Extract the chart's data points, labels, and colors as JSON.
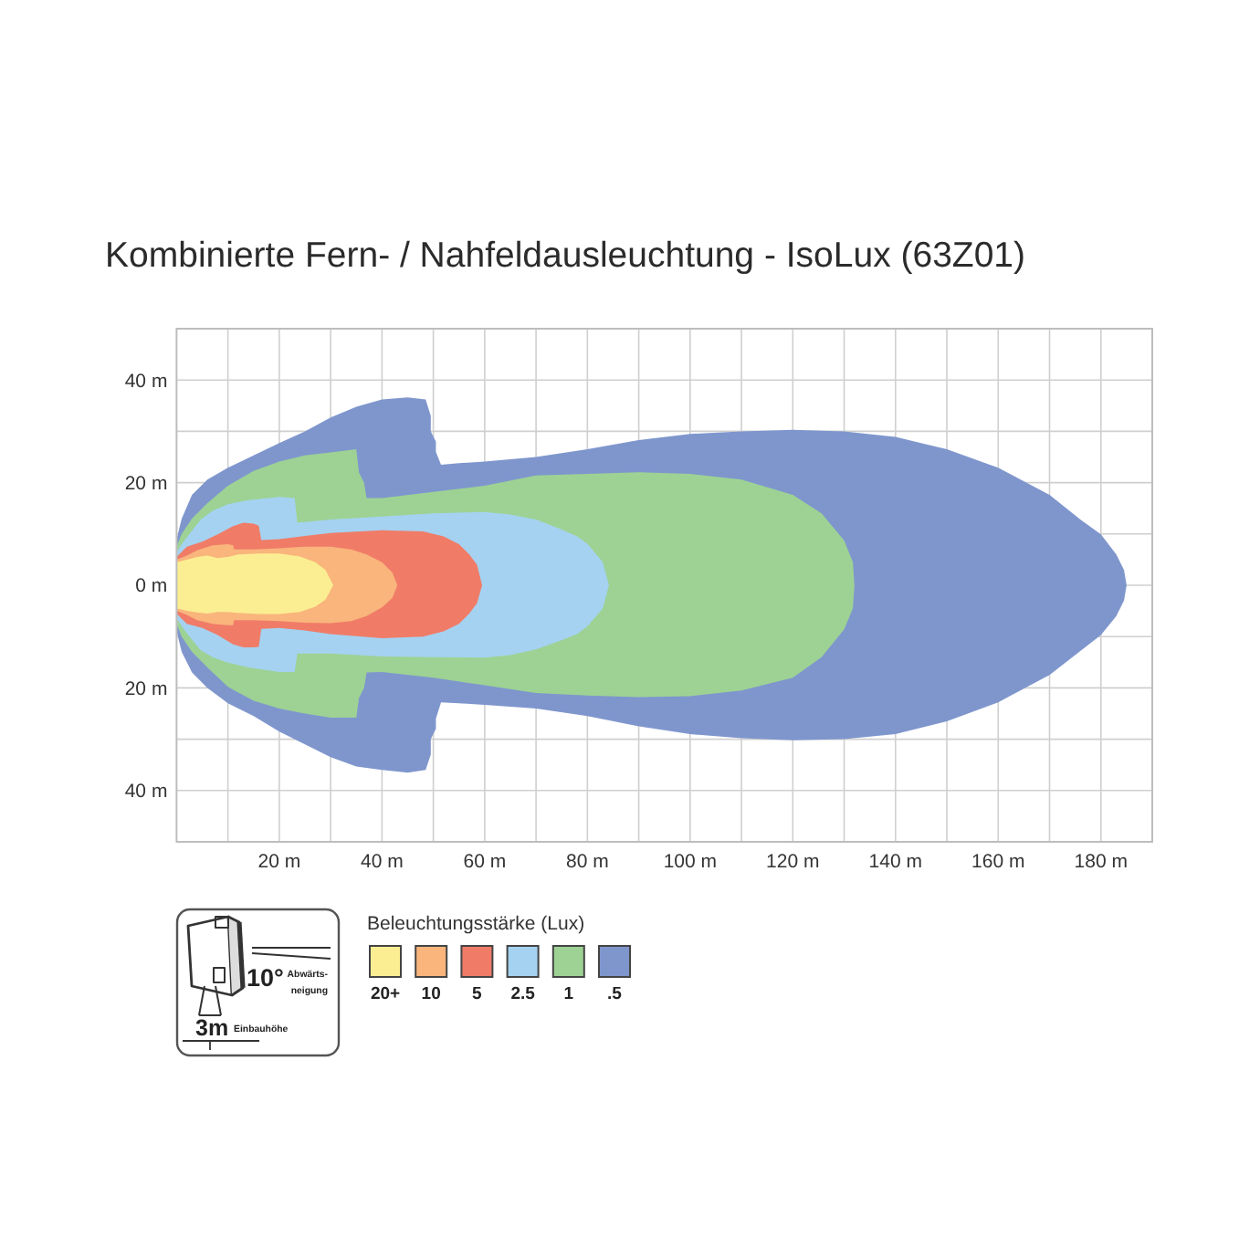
{
  "chart_data": {
    "type": "area",
    "title": "Kombinierte Fern- / Nahfeldausleuchtung - IsoLux (63Z01)",
    "legend_title": "Beleuchtungsstärke (Lux)",
    "annotations": [
      "10°",
      "Abwärts-",
      "neigung",
      "3m",
      "Einbauhöhe"
    ],
    "xlim": [
      0,
      190
    ],
    "ylim": [
      -50,
      50
    ],
    "xticks": [
      {
        "value": 10,
        "label": null
      },
      {
        "value": 20,
        "label": "20 m"
      },
      {
        "value": 30,
        "label": null
      },
      {
        "value": 40,
        "label": "40 m"
      },
      {
        "value": 50,
        "label": null
      },
      {
        "value": 60,
        "label": "60 m"
      },
      {
        "value": 70,
        "label": null
      },
      {
        "value": 80,
        "label": "80 m"
      },
      {
        "value": 90,
        "label": null
      },
      {
        "value": 100,
        "label": "100 m"
      },
      {
        "value": 110,
        "label": null
      },
      {
        "value": 120,
        "label": "120 m"
      },
      {
        "value": 130,
        "label": null
      },
      {
        "value": 140,
        "label": "140 m"
      },
      {
        "value": 150,
        "label": null
      },
      {
        "value": 160,
        "label": "160 m"
      },
      {
        "value": 170,
        "label": null
      },
      {
        "value": 180,
        "label": "180 m"
      }
    ],
    "yticks": [
      {
        "value": -40,
        "label": "40 m"
      },
      {
        "value": -30,
        "label": null
      },
      {
        "value": -20,
        "label": "20 m"
      },
      {
        "value": -10,
        "label": null
      },
      {
        "value": 0,
        "label": "0 m"
      },
      {
        "value": 10,
        "label": null
      },
      {
        "value": 20,
        "label": "20 m"
      },
      {
        "value": 30,
        "label": null
      },
      {
        "value": 40,
        "label": "40 m"
      }
    ],
    "grid": true,
    "legend": "bottom left",
    "series": [
      {
        "name": "20+",
        "color": "#fbee92",
        "x": [
          0,
          2,
          4,
          6,
          8,
          10,
          12,
          16,
          20,
          24,
          27,
          29,
          30.5
        ],
        "values": [
          4.5,
          5,
          5.5,
          5.8,
          5.3,
          5.5,
          6,
          6.2,
          6.2,
          5.6,
          4.5,
          3,
          0
        ]
      },
      {
        "color": "#fbee92",
        "x": [
          0,
          2,
          4,
          6,
          8,
          10,
          12,
          16,
          20,
          24,
          27,
          29,
          30.5
        ],
        "values": [
          -4.5,
          -5,
          -5.3,
          -5.5,
          -5.2,
          -5.2,
          -5.4,
          -5.6,
          -5.6,
          -5.2,
          -4.2,
          -2.8,
          0
        ]
      },
      {
        "name": "10",
        "color": "#f9b57c",
        "x": [
          0,
          2,
          4,
          7,
          10,
          11,
          11.2,
          15,
          20,
          25,
          30,
          34,
          37,
          40,
          42,
          43
        ],
        "values": [
          5,
          5.8,
          6.8,
          7.8,
          8,
          7.8,
          7,
          7,
          7.2,
          7.5,
          7.5,
          7,
          6,
          4.5,
          2.5,
          0
        ]
      },
      {
        "color": "#f9b57c",
        "x": [
          0,
          2,
          4,
          7,
          10,
          11,
          11.2,
          15,
          20,
          25,
          30,
          34,
          37,
          40,
          42,
          43
        ],
        "values": [
          -5,
          -5.8,
          -6.8,
          -7.5,
          -7.8,
          -7.8,
          -6.8,
          -6.8,
          -7,
          -7.3,
          -7.4,
          -7,
          -6,
          -4.3,
          -2.5,
          0
        ]
      },
      {
        "name": "5",
        "color": "#f07c68",
        "x": [
          0,
          2,
          5,
          8,
          11,
          13,
          15,
          16,
          16.5,
          20,
          25,
          30,
          40,
          48,
          52,
          55,
          57,
          58.5,
          59.5
        ],
        "values": [
          5.5,
          7.5,
          8.5,
          9.9,
          11.5,
          12.2,
          12,
          11.6,
          8.8,
          9,
          9.6,
          10.2,
          10.7,
          10.5,
          9.5,
          8,
          6,
          4,
          0
        ]
      },
      {
        "color": "#f07c68",
        "x": [
          0,
          2,
          5,
          8,
          11,
          13,
          15,
          16,
          16.5,
          20,
          25,
          30,
          40,
          48,
          52,
          55,
          57,
          58.5,
          59.5
        ],
        "values": [
          -5.5,
          -7.5,
          -8.3,
          -9.7,
          -11.5,
          -12.1,
          -12.1,
          -12,
          -8.5,
          -8.3,
          -8.8,
          -9.5,
          -10.3,
          -10,
          -9,
          -7.5,
          -5.5,
          -3.5,
          0
        ]
      },
      {
        "name": "2.5",
        "color": "#a5d2f0",
        "x": [
          0,
          1,
          2.5,
          4.7,
          7,
          10,
          14,
          20,
          23,
          23.5,
          30,
          40,
          50,
          60,
          65,
          70,
          74.7,
          78,
          80,
          83,
          84.2
        ],
        "values": [
          6.5,
          8,
          10,
          12.8,
          14.5,
          15.8,
          16.6,
          17.2,
          17,
          12.2,
          12.8,
          13.4,
          14,
          14.3,
          13.8,
          12.8,
          11,
          9.5,
          8.1,
          4.5,
          0
        ]
      },
      {
        "color": "#a5d2f0",
        "x": [
          0,
          1,
          2.5,
          4.7,
          7,
          10,
          14,
          20,
          23,
          23.5,
          30,
          40,
          50,
          60,
          65,
          70,
          74.7,
          78,
          80,
          83,
          84.2
        ],
        "values": [
          -6.5,
          -8,
          -10,
          -12.7,
          -14,
          -15.1,
          -16,
          -16.9,
          -16.9,
          -13.3,
          -13.3,
          -13.9,
          -14,
          -14.1,
          -13.6,
          -12.5,
          -10.8,
          -9.5,
          -8,
          -4.5,
          0
        ]
      },
      {
        "name": "1",
        "color": "#9dd294",
        "x": [
          0,
          1,
          3,
          6,
          10,
          15,
          20,
          25,
          30,
          35,
          35.5,
          36.5,
          37,
          40,
          50,
          60,
          70,
          80,
          90,
          100,
          110,
          120,
          125.6,
          130,
          131.7,
          132
        ],
        "values": [
          7.5,
          10,
          13,
          16,
          19.4,
          22.3,
          24.1,
          25.3,
          25.9,
          26.5,
          22,
          20,
          17,
          17,
          18.2,
          19.4,
          21.4,
          21.7,
          22,
          21.7,
          20.6,
          17.6,
          14,
          8.7,
          4.5,
          0
        ]
      },
      {
        "color": "#9dd294",
        "x": [
          0,
          1,
          3,
          6,
          10,
          15,
          20,
          25,
          30,
          35,
          35.5,
          36.5,
          37,
          40,
          50,
          60,
          70,
          80,
          90,
          100,
          110,
          120,
          125.6,
          130,
          131.7,
          132
        ],
        "values": [
          -7.5,
          -10,
          -13,
          -16,
          -19.8,
          -22.5,
          -24,
          -25,
          -25.8,
          -25.8,
          -22,
          -20,
          -17,
          -16.9,
          -18,
          -19.5,
          -21,
          -21.5,
          -21.8,
          -21.6,
          -20.5,
          -18,
          -14,
          -8.6,
          -4.5,
          0
        ]
      },
      {
        "name": ".5",
        "color": "#7f96cd",
        "x": [
          0,
          1,
          3,
          6,
          10,
          15,
          20,
          25,
          30,
          35,
          40,
          45,
          48.5,
          49.5,
          49.5,
          50.5,
          50.5,
          51.5,
          55,
          60,
          70,
          80,
          90,
          100,
          110,
          120,
          130,
          140,
          150,
          160,
          170,
          176,
          180,
          183,
          184.5,
          185
        ],
        "values": [
          9,
          13,
          17.6,
          20.6,
          22.9,
          25.3,
          27.7,
          30,
          32.7,
          34.8,
          36.2,
          36.6,
          36.2,
          33,
          30,
          28,
          26,
          23.5,
          23.8,
          24.1,
          25,
          26.5,
          28.3,
          29.5,
          30,
          30.3,
          30,
          28.9,
          26.5,
          22.9,
          17.6,
          12.8,
          9.9,
          6,
          3,
          0
        ]
      },
      {
        "color": "#7f96cd",
        "x": [
          0,
          1,
          3,
          6,
          10,
          15,
          20,
          25,
          30,
          35,
          40,
          45,
          48.5,
          49.5,
          49.5,
          50.5,
          50.5,
          51.5,
          55,
          60,
          70,
          80,
          90,
          100,
          110,
          120,
          130,
          140,
          150,
          160,
          170,
          176,
          180,
          183,
          184.5,
          185
        ],
        "values": [
          -9,
          -13,
          -17,
          -20,
          -23,
          -25.5,
          -28.5,
          -31,
          -33.5,
          -35.3,
          -36,
          -36.5,
          -36,
          -33,
          -30,
          -28,
          -26,
          -22.8,
          -23,
          -23.3,
          -24,
          -25.5,
          -27.5,
          -29,
          -29.8,
          -30.2,
          -30,
          -29,
          -26.5,
          -22.8,
          -17.5,
          -12.8,
          -9.7,
          -6,
          -3,
          0
        ]
      }
    ]
  }
}
